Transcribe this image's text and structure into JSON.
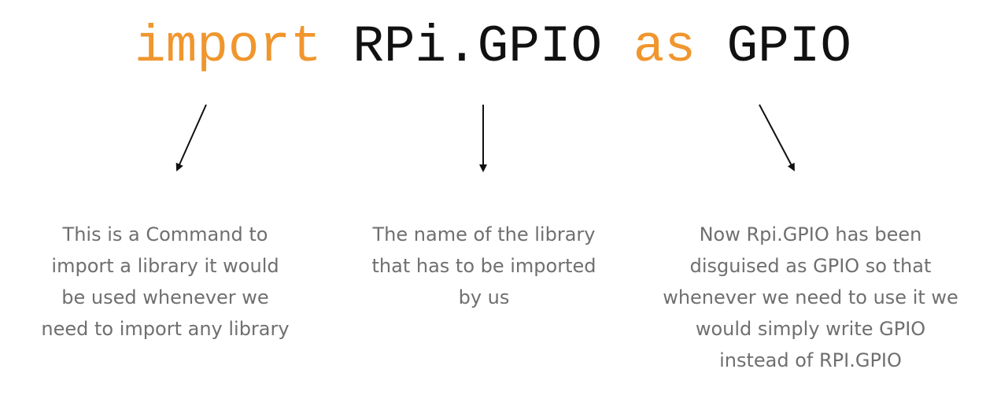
{
  "code": {
    "keyword_import": "import",
    "module_name": "RPi.GPIO",
    "keyword_as": "as",
    "alias": "GPIO"
  },
  "annotations": [
    {
      "lines": [
        "This is a Command to",
        "import a library it would",
        "be used whenever we",
        "need to import any library"
      ]
    },
    {
      "lines": [
        "The name of the library",
        "that has to be imported",
        "by us"
      ]
    },
    {
      "lines": [
        "Now Rpi.GPIO has been",
        "disguised as GPIO so that",
        "whenever we need to use it we",
        "would simply write GPIO",
        "instead of RPI.GPIO"
      ]
    }
  ],
  "colors": {
    "keyword": "#f0962e",
    "identifier": "#111111",
    "annotation_text": "#6f6f6f",
    "arrow": "#111111"
  }
}
